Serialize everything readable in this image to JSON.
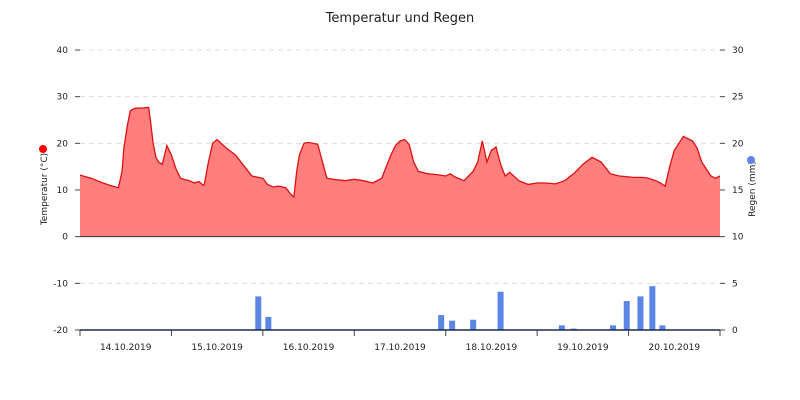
{
  "chart_data": {
    "type": "line+bar",
    "title": "Temperatur und Regen",
    "grid": "horizontal dashed",
    "x_range": [
      0,
      7
    ],
    "date_labels": [
      "14.10.2019",
      "15.10.2019",
      "16.10.2019",
      "17.10.2019",
      "18.10.2019",
      "19.10.2019",
      "20.10.2019"
    ],
    "left_axis": {
      "label": "Temperatur (°C)",
      "range": [
        -20,
        40
      ],
      "ticks": [
        "-20",
        "-10",
        "0",
        "10",
        "20",
        "30",
        "40"
      ],
      "tick_values": [
        -20,
        -10,
        0,
        10,
        20,
        30,
        40
      ],
      "marker_color": "#ff0000"
    },
    "right_axis": {
      "label": "Regen (mm)",
      "range": [
        0,
        30
      ],
      "ticks": [
        "0",
        "5",
        "10",
        "15",
        "20",
        "25",
        "30"
      ],
      "tick_values": [
        0,
        5,
        10,
        15,
        20,
        25,
        30
      ],
      "marker_color": "#5b86e5"
    },
    "temperature": {
      "line_color": "#dd1111",
      "fill_color": "#ff7f7f",
      "x": [
        0.0,
        0.12,
        0.25,
        0.36,
        0.42,
        0.46,
        0.48,
        0.52,
        0.55,
        0.6,
        0.7,
        0.75,
        0.77,
        0.8,
        0.83,
        0.86,
        0.9,
        0.95,
        1.0,
        1.05,
        1.1,
        1.15,
        1.2,
        1.25,
        1.3,
        1.35,
        1.36,
        1.4,
        1.45,
        1.5,
        1.6,
        1.7,
        1.8,
        1.88,
        1.95,
        2.0,
        2.05,
        2.12,
        2.15,
        2.18,
        2.25,
        2.3,
        2.34,
        2.37,
        2.4,
        2.45,
        2.5,
        2.6,
        2.7,
        2.8,
        2.9,
        3.0,
        3.1,
        3.2,
        3.3,
        3.35,
        3.4,
        3.45,
        3.5,
        3.55,
        3.6,
        3.65,
        3.7,
        3.8,
        3.9,
        4.0,
        4.05,
        4.1,
        4.2,
        4.3,
        4.35,
        4.4,
        4.45,
        4.5,
        4.55,
        4.6,
        4.65,
        4.7,
        4.8,
        4.9,
        5.0,
        5.1,
        5.2,
        5.3,
        5.4,
        5.5,
        5.6,
        5.7,
        5.8,
        5.9,
        6.0,
        6.05,
        6.1,
        6.15,
        6.2,
        6.25,
        6.3,
        6.35,
        6.4,
        6.45,
        6.5,
        6.55,
        6.6,
        6.65,
        6.7,
        6.75,
        6.8,
        6.85,
        6.9,
        6.95,
        7.0
      ],
      "y": [
        13.2,
        12.5,
        11.5,
        10.8,
        10.5,
        14.0,
        19.0,
        24.0,
        27.0,
        27.5,
        27.6,
        27.7,
        25.0,
        20.0,
        17.0,
        16.0,
        15.5,
        19.5,
        17.5,
        14.5,
        12.5,
        12.2,
        12.0,
        11.5,
        11.8,
        11.0,
        11.2,
        15.5,
        20.0,
        20.8,
        19.0,
        17.5,
        15.0,
        13.0,
        12.7,
        12.5,
        11.2,
        10.6,
        10.8,
        10.8,
        10.5,
        9.2,
        8.5,
        14.0,
        17.5,
        20.0,
        20.2,
        19.8,
        12.5,
        12.2,
        12.0,
        12.3,
        12.0,
        11.5,
        12.5,
        15.0,
        17.5,
        19.5,
        20.5,
        20.8,
        19.8,
        16.0,
        14.0,
        13.5,
        13.3,
        13.0,
        13.5,
        12.8,
        12.0,
        14.0,
        16.0,
        20.5,
        16.0,
        18.5,
        19.2,
        15.5,
        13.0,
        13.8,
        12.0,
        11.2,
        11.5,
        11.5,
        11.3,
        12.0,
        13.5,
        15.5,
        17.0,
        16.0,
        13.5,
        13.0,
        12.8,
        12.7,
        12.7,
        12.7,
        12.6,
        12.3,
        12.0,
        11.5,
        10.8,
        15.0,
        18.5,
        20.0,
        21.5,
        21.0,
        20.5,
        19.0,
        16.0,
        14.5,
        13.0,
        12.5,
        13.0
      ]
    },
    "rain": {
      "bar_color": "#5b86e5",
      "x": [
        1.95,
        2.06,
        3.95,
        4.07,
        4.3,
        4.6,
        5.27,
        5.4,
        5.83,
        5.98,
        6.13,
        6.26,
        6.37
      ],
      "values": [
        3.6,
        1.4,
        1.6,
        1.0,
        1.1,
        4.1,
        0.5,
        0.15,
        0.5,
        3.1,
        3.6,
        4.7,
        0.5
      ]
    }
  }
}
